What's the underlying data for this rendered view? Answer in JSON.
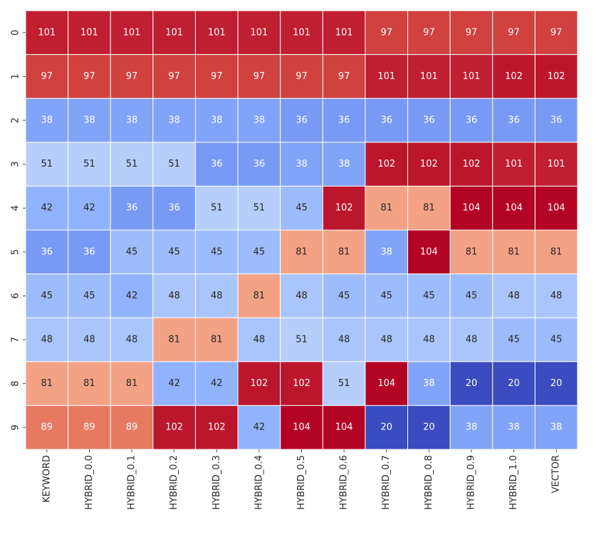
{
  "chart_data": {
    "type": "heatmap",
    "title": "",
    "xlabel": "",
    "ylabel": "",
    "colormap": "coolwarm",
    "value_range": [
      20,
      104
    ],
    "grid_line_color": "#ffffff",
    "colorbar": false,
    "x_categories": [
      "KEYWORD",
      "HYBRID_0.0",
      "HYBRID_0.1",
      "HYBRID_0.2",
      "HYBRID_0.3",
      "HYBRID_0.4",
      "HYBRID_0.5",
      "HYBRID_0.6",
      "HYBRID_0.7",
      "HYBRID_0.8",
      "HYBRID_0.9",
      "HYBRID_1.0",
      "VECTOR"
    ],
    "y_categories": [
      "0",
      "1",
      "2",
      "3",
      "4",
      "5",
      "6",
      "7",
      "8",
      "9"
    ],
    "values": [
      [
        101,
        101,
        101,
        101,
        101,
        101,
        101,
        101,
        97,
        97,
        97,
        97,
        97
      ],
      [
        97,
        97,
        97,
        97,
        97,
        97,
        97,
        97,
        101,
        101,
        101,
        102,
        102
      ],
      [
        38,
        38,
        38,
        38,
        38,
        38,
        36,
        36,
        36,
        36,
        36,
        36,
        36
      ],
      [
        51,
        51,
        51,
        51,
        36,
        36,
        38,
        38,
        102,
        102,
        102,
        101,
        101
      ],
      [
        42,
        42,
        36,
        36,
        51,
        51,
        45,
        102,
        81,
        81,
        104,
        104,
        104
      ],
      [
        36,
        36,
        45,
        45,
        45,
        45,
        81,
        81,
        38,
        104,
        81,
        81,
        81
      ],
      [
        45,
        45,
        42,
        48,
        48,
        81,
        48,
        45,
        45,
        45,
        45,
        48,
        48
      ],
      [
        48,
        48,
        48,
        81,
        81,
        48,
        51,
        48,
        48,
        48,
        48,
        45,
        45
      ],
      [
        81,
        81,
        81,
        42,
        42,
        102,
        102,
        51,
        104,
        38,
        20,
        20,
        20
      ],
      [
        89,
        89,
        89,
        102,
        102,
        42,
        104,
        104,
        20,
        20,
        38,
        38,
        38
      ]
    ]
  }
}
